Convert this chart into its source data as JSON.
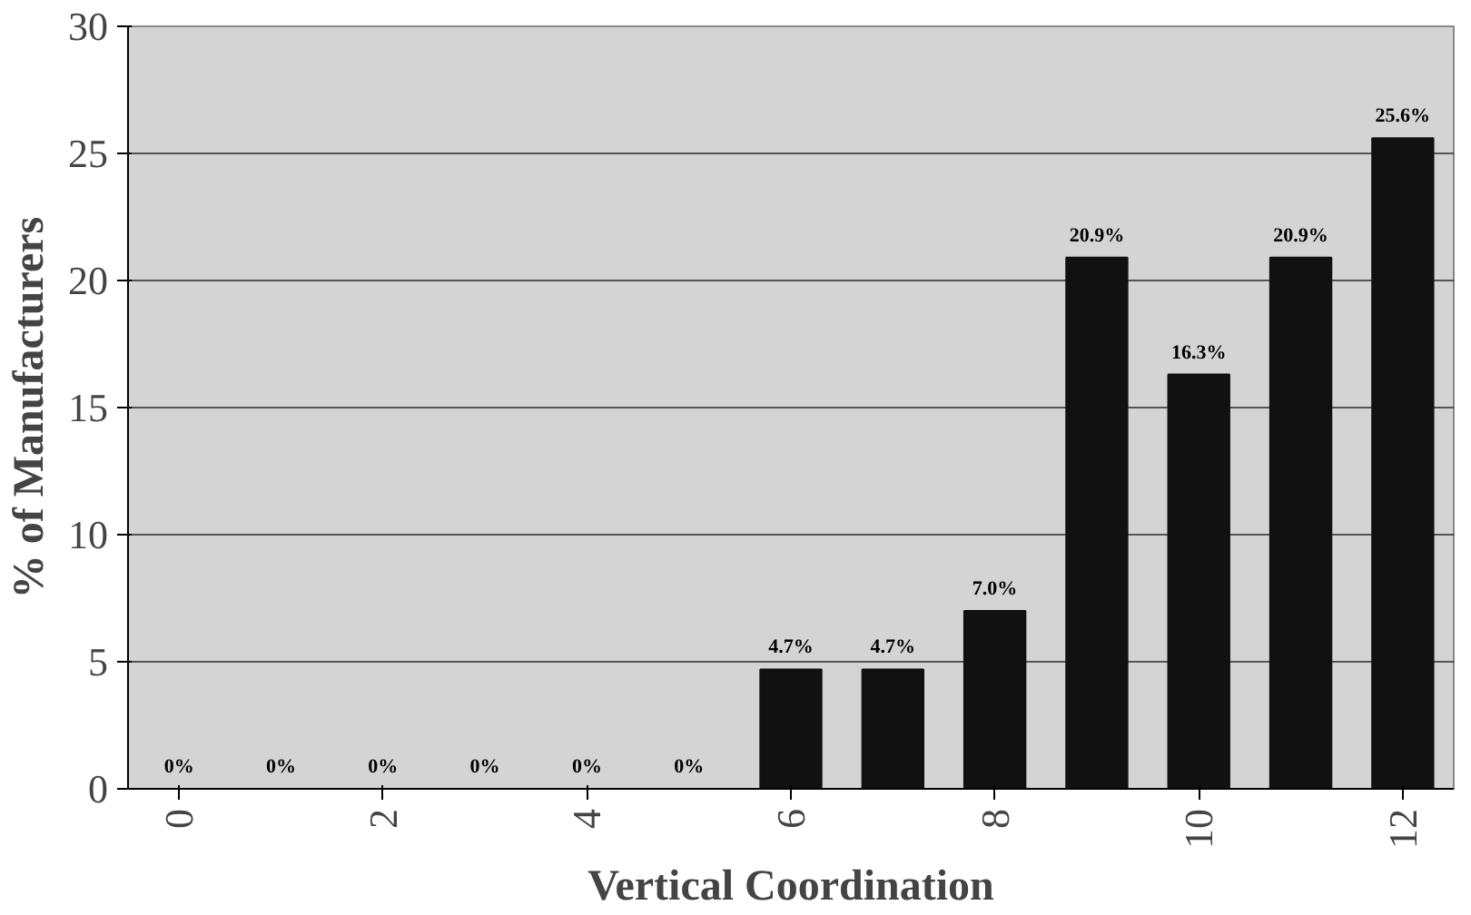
{
  "chart_data": {
    "type": "bar",
    "xlabel": "Vertical Coordination",
    "ylabel": "% of Manufacturers",
    "categories": [
      "0",
      null,
      "2",
      null,
      "4",
      null,
      "6",
      null,
      "8",
      null,
      "10",
      null,
      "12"
    ],
    "values": [
      0,
      0,
      0,
      0,
      0,
      0,
      4.7,
      4.7,
      7.0,
      20.9,
      16.3,
      20.9,
      25.6
    ],
    "value_labels": [
      "0%",
      "0%",
      "0%",
      "0%",
      "0%",
      "0%",
      "4.7%",
      "4.7%",
      "7.0%",
      "20.9%",
      "16.3%",
      "20.9%",
      "25.6%"
    ],
    "color": "#111111",
    "ylim": [
      0,
      30
    ],
    "yticks": [
      0,
      5,
      10,
      15,
      20,
      25,
      30
    ],
    "grid": "y"
  }
}
